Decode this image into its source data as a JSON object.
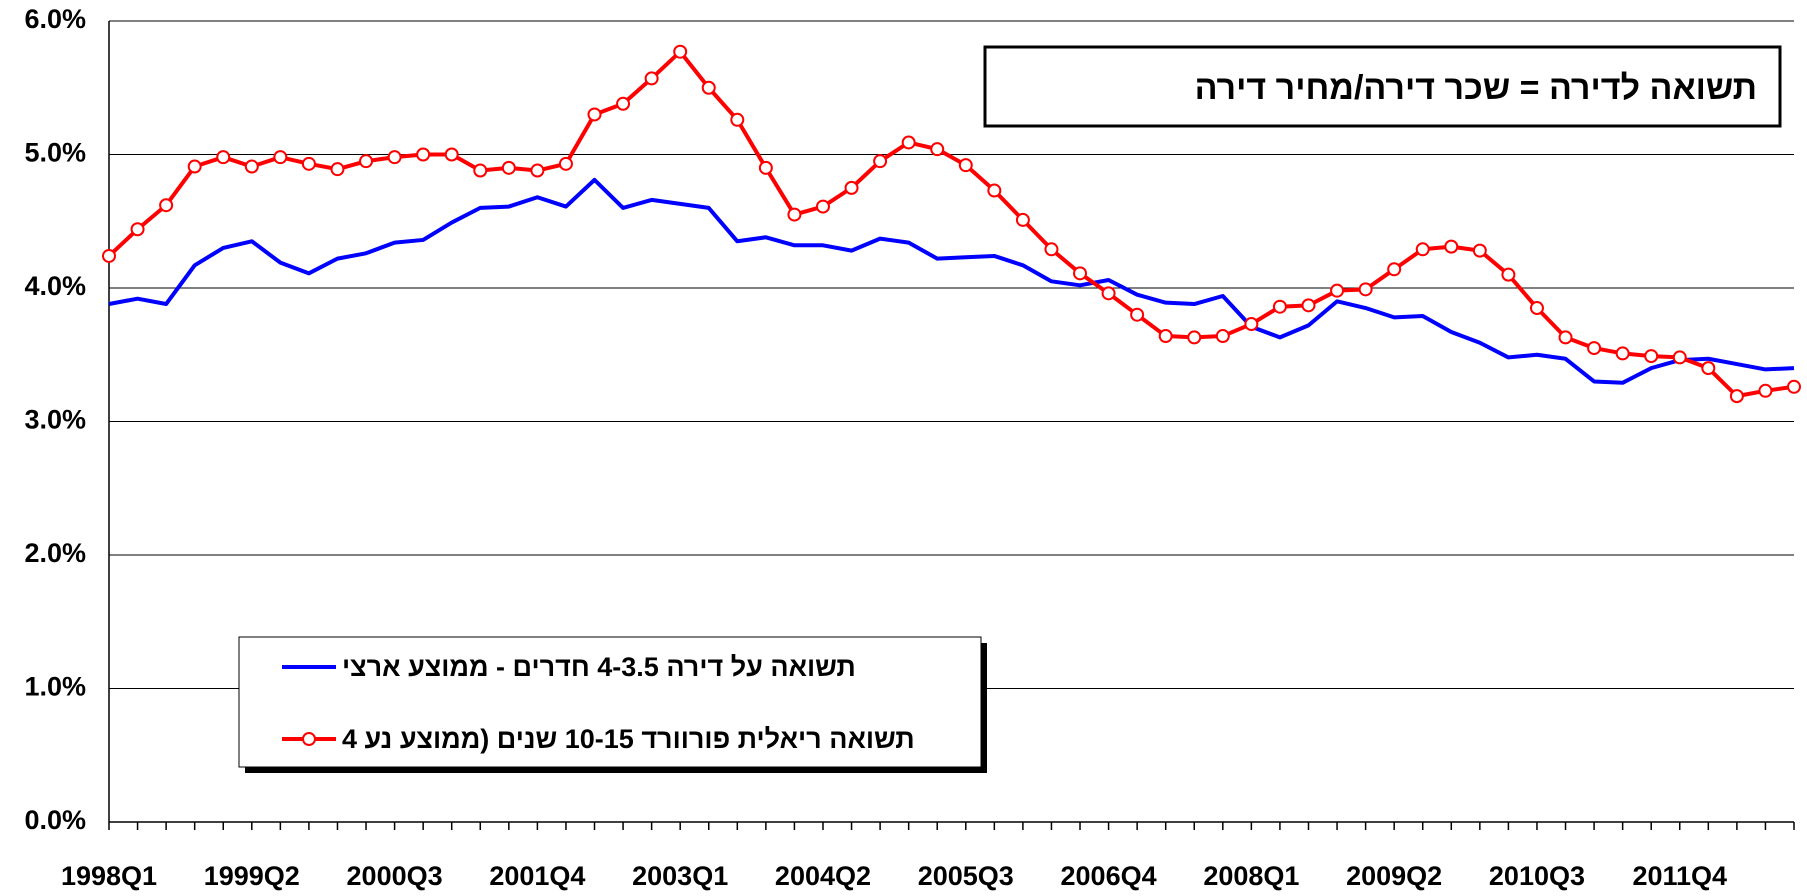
{
  "chart_data": {
    "type": "line",
    "title": "תשואה לדירה = שכר דירה/מחיר דירה",
    "categories": [
      "1998Q1",
      null,
      null,
      null,
      null,
      "1999Q2",
      null,
      null,
      null,
      null,
      "2000Q3",
      null,
      null,
      null,
      null,
      "2001Q4",
      null,
      null,
      null,
      null,
      "2003Q1",
      null,
      null,
      null,
      null,
      "2004Q2",
      null,
      null,
      null,
      null,
      "2005Q3",
      null,
      null,
      null,
      null,
      "2006Q4",
      null,
      null,
      null,
      null,
      "2008Q1",
      null,
      null,
      null,
      null,
      "2009Q2",
      null,
      null,
      null,
      null,
      "2010Q3",
      null,
      null,
      null,
      null,
      "2011Q4",
      null,
      null,
      null,
      null
    ],
    "series": [
      {
        "name": "תשואה על דירה 4-3.5 חדרים - ממוצע ארצי",
        "color": "#0000ff",
        "markers": false,
        "values": [
          3.88,
          3.92,
          3.88,
          4.17,
          4.3,
          4.35,
          4.19,
          4.11,
          4.22,
          4.26,
          4.34,
          4.36,
          4.49,
          4.6,
          4.61,
          4.68,
          4.61,
          4.81,
          4.6,
          4.66,
          4.63,
          4.6,
          4.35,
          4.38,
          4.32,
          4.32,
          4.28,
          4.37,
          4.34,
          4.22,
          4.23,
          4.24,
          4.17,
          4.05,
          4.02,
          4.06,
          3.95,
          3.89,
          3.88,
          3.94,
          3.71,
          3.63,
          3.72,
          3.9,
          3.85,
          3.78,
          3.79,
          3.67,
          3.59,
          3.48,
          3.5,
          3.47,
          3.3,
          3.29,
          3.4,
          3.46,
          3.47,
          3.43,
          3.39,
          3.4
        ]
      },
      {
        "name": "תשואה ריאלית פורוורד 10-15 שנים (ממוצע נע 4",
        "color": "#ff0000",
        "markers": true,
        "values": [
          4.24,
          4.44,
          4.62,
          4.91,
          4.98,
          4.91,
          4.98,
          4.93,
          4.89,
          4.95,
          4.98,
          5.0,
          5.0,
          4.88,
          4.9,
          4.88,
          4.93,
          5.3,
          5.38,
          5.57,
          5.77,
          5.5,
          5.26,
          4.9,
          4.55,
          4.61,
          4.75,
          4.95,
          5.09,
          5.04,
          4.92,
          4.73,
          4.51,
          4.29,
          4.11,
          3.96,
          3.8,
          3.64,
          3.63,
          3.64,
          3.73,
          3.86,
          3.87,
          3.98,
          3.99,
          4.14,
          4.29,
          4.31,
          4.28,
          4.1,
          3.85,
          3.63,
          3.55,
          3.51,
          3.49,
          3.48,
          3.4,
          3.19,
          3.23,
          3.26
        ]
      }
    ],
    "ylim": [
      0,
      6
    ],
    "yticks": [
      {
        "value": 0,
        "label": "0.0%"
      },
      {
        "value": 1,
        "label": "1.0%"
      },
      {
        "value": 2,
        "label": "2.0%"
      },
      {
        "value": 3,
        "label": "3.0%"
      },
      {
        "value": 4,
        "label": "4.0%"
      },
      {
        "value": 5,
        "label": "5.0%"
      },
      {
        "value": 6,
        "label": "6.0%"
      }
    ],
    "grid": true,
    "legend": "lower left"
  }
}
